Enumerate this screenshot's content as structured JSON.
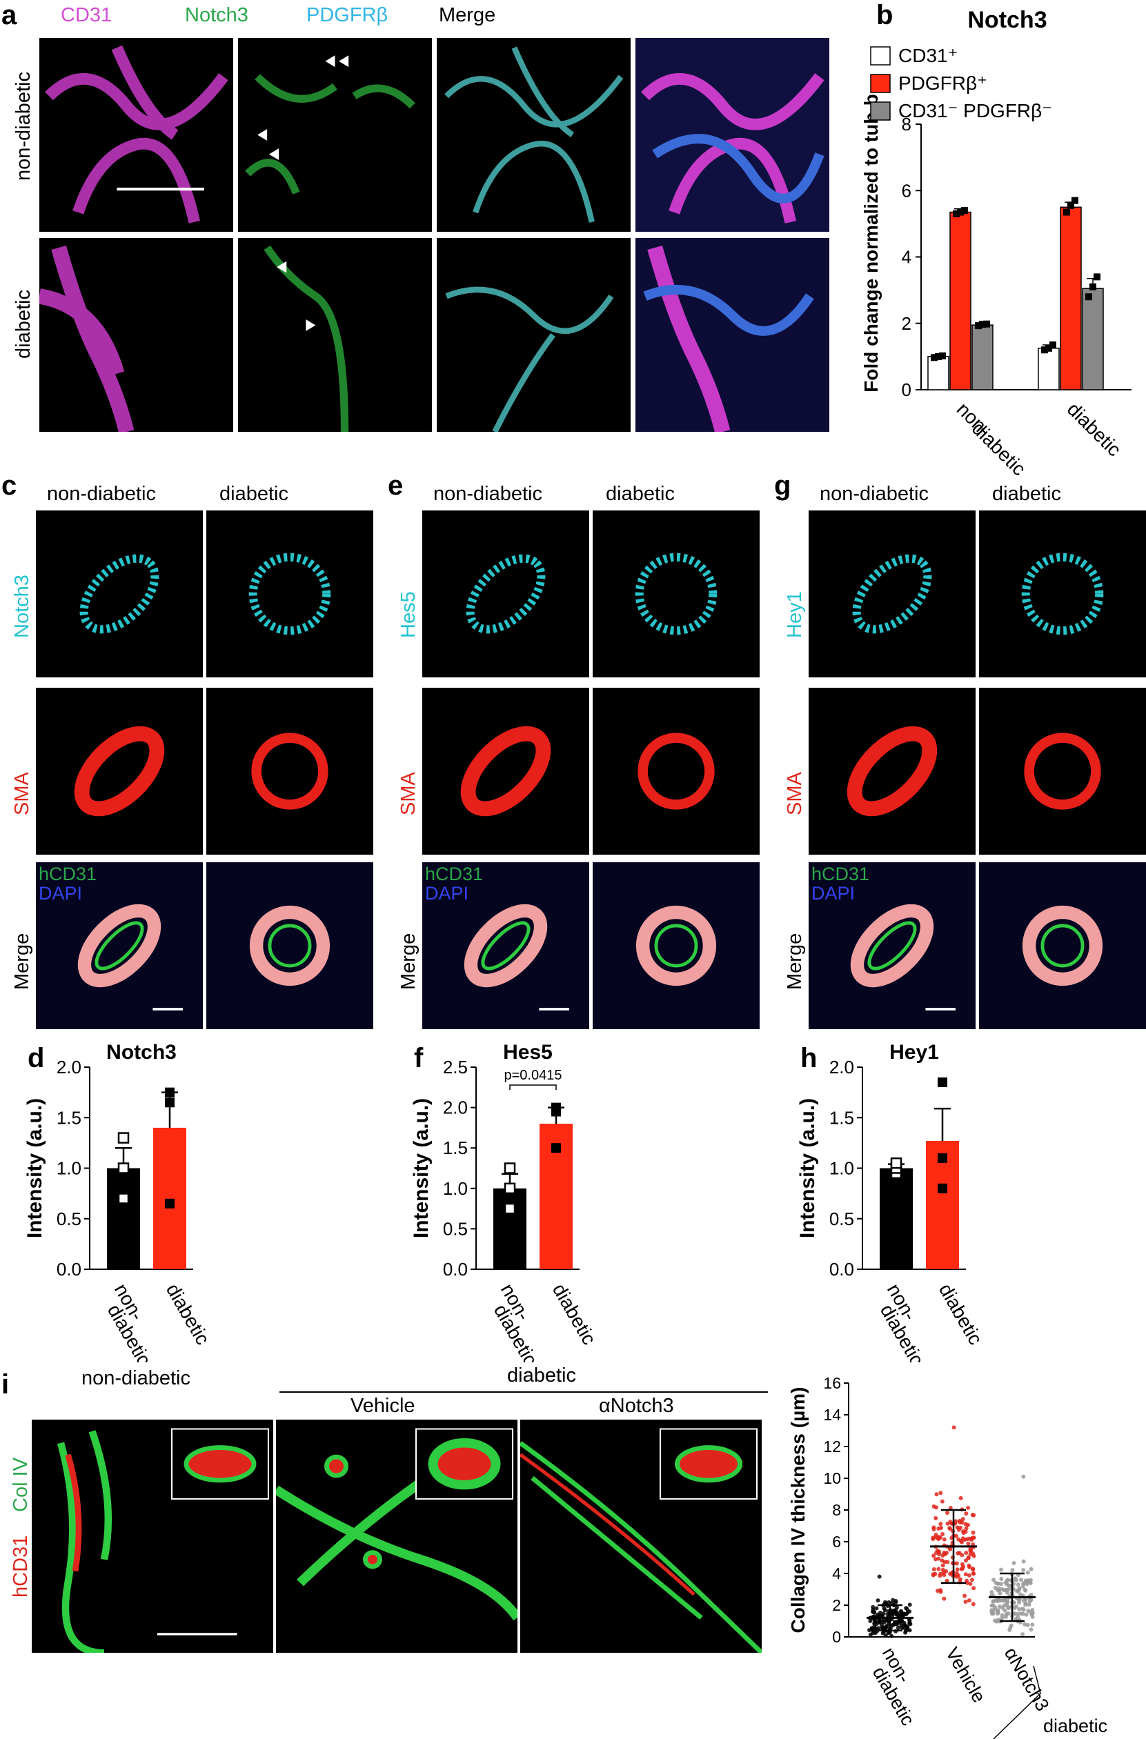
{
  "panels": {
    "a": {
      "letter": "a",
      "channels": [
        {
          "label": "CD31",
          "color": "#d24fd2"
        },
        {
          "label": "Notch3",
          "color": "#2aa84a"
        },
        {
          "label": "PDGFRβ",
          "color": "#2fb5e6"
        },
        {
          "label": "Merge",
          "color": "#000000"
        }
      ],
      "rows": [
        "non-diabetic",
        "diabetic"
      ]
    },
    "c": {
      "letter": "c",
      "cols": [
        "non-diabetic",
        "diabetic"
      ],
      "rows": [
        "Notch3",
        "SMA",
        "Merge"
      ],
      "merge_labels": [
        "hCD31",
        "DAPI"
      ]
    },
    "e": {
      "letter": "e",
      "cols": [
        "non-diabetic",
        "diabetic"
      ],
      "rows": [
        "Hes5",
        "SMA",
        "Merge"
      ],
      "merge_labels": [
        "hCD31",
        "DAPI"
      ]
    },
    "g": {
      "letter": "g",
      "cols": [
        "non-diabetic",
        "diabetic"
      ],
      "rows": [
        "Hey1",
        "SMA",
        "Merge"
      ],
      "merge_labels": [
        "hCD31",
        "DAPI"
      ]
    },
    "i": {
      "letter": "i",
      "cols": [
        "non-diabetic",
        "Vehicle",
        "αNotch3"
      ],
      "group": "diabetic",
      "side_labels": [
        "hCD31",
        "Col IV"
      ]
    }
  },
  "chart_data": [
    {
      "id": "b",
      "letter": "b",
      "type": "bar",
      "title": "Notch3",
      "ylabel": "Fold change normalized to tub-b",
      "ylim": [
        0,
        8
      ],
      "yticks": [
        0,
        2,
        4,
        6,
        8
      ],
      "categories": [
        "non-diabetic",
        "diabetic"
      ],
      "category_labels": [
        [
          "non-",
          "diabetic"
        ],
        [
          "diabetic"
        ]
      ],
      "legend": [
        "CD31⁺",
        "PDGFRβ⁺",
        "CD31⁻ PDGFRβ⁻"
      ],
      "series": [
        {
          "name": "CD31⁺",
          "color": "#ffffff",
          "values": [
            1.0,
            1.25
          ],
          "err": [
            0.05,
            0.1
          ],
          "points": [
            [
              0.97,
              1.0,
              1.02
            ],
            [
              1.2,
              1.25,
              1.35
            ]
          ]
        },
        {
          "name": "PDGFRβ⁺",
          "color": "#ff2a12",
          "values": [
            5.35,
            5.5
          ],
          "err": [
            0.1,
            0.15
          ],
          "points": [
            [
              5.3,
              5.35,
              5.4
            ],
            [
              5.35,
              5.55,
              5.7
            ]
          ]
        },
        {
          "name": "CD31⁻ PDGFRβ⁻",
          "color": "#888888",
          "values": [
            1.95,
            3.05
          ],
          "err": [
            0.05,
            0.3
          ],
          "points": [
            [
              1.93,
              1.97,
              1.98
            ],
            [
              2.8,
              3.1,
              3.4
            ]
          ]
        }
      ]
    },
    {
      "id": "d",
      "letter": "d",
      "type": "bar",
      "title": "Notch3",
      "ylabel": "Intensity (a.u.)",
      "ylim": [
        0,
        2.0
      ],
      "yticks": [
        "0.0",
        "0.5",
        "1.0",
        "1.5",
        "2.0"
      ],
      "categories": [
        "non-diabetic",
        "diabetic"
      ],
      "category_labels": [
        [
          "non-",
          "diabetic"
        ],
        [
          "diabetic"
        ]
      ],
      "values": [
        1.0,
        1.4
      ],
      "err": [
        0.2,
        0.35
      ],
      "colors": [
        "#000000",
        "#ff2a12"
      ],
      "points": [
        [
          0.7,
          1.0,
          1.3
        ],
        [
          0.65,
          1.65,
          1.75
        ]
      ],
      "annotation": ""
    },
    {
      "id": "f",
      "letter": "f",
      "type": "bar",
      "title": "Hes5",
      "ylabel": "Intensity (a.u.)",
      "ylim": [
        0,
        2.5
      ],
      "yticks": [
        "0.0",
        "0.5",
        "1.0",
        "1.5",
        "2.0",
        "2.5"
      ],
      "categories": [
        "non-diabetic",
        "diabetic"
      ],
      "category_labels": [
        [
          "non-",
          "diabetic"
        ],
        [
          "diabetic"
        ]
      ],
      "values": [
        1.0,
        1.8
      ],
      "err": [
        0.18,
        0.2
      ],
      "colors": [
        "#000000",
        "#ff2a12"
      ],
      "points": [
        [
          0.75,
          1.0,
          1.25
        ],
        [
          1.5,
          1.95,
          2.0
        ]
      ],
      "annotation": "p=0.0415"
    },
    {
      "id": "h",
      "letter": "h",
      "type": "bar",
      "title": "Hey1",
      "ylabel": "Intensity (a.u.)",
      "ylim": [
        0,
        2.0
      ],
      "yticks": [
        "0.0",
        "0.5",
        "1.0",
        "1.5",
        "2.0"
      ],
      "categories": [
        "non-diabetic",
        "diabetic"
      ],
      "category_labels": [
        [
          "non-",
          "diabetic"
        ],
        [
          "diabetic"
        ]
      ],
      "values": [
        1.0,
        1.27
      ],
      "err": [
        0.04,
        0.32
      ],
      "colors": [
        "#000000",
        "#ff2a12"
      ],
      "points": [
        [
          0.95,
          1.0,
          1.05
        ],
        [
          0.8,
          1.1,
          1.85
        ]
      ],
      "annotation": ""
    },
    {
      "id": "i-chart",
      "type": "scatter",
      "ylabel": "Collagen IV thickness (µm)",
      "ylim": [
        0,
        16
      ],
      "yticks": [
        0,
        2,
        4,
        6,
        8,
        10,
        12,
        14,
        16
      ],
      "categories": [
        "non-diabetic",
        "Vehicle",
        "αNotch3"
      ],
      "category_labels": [
        [
          "non-",
          "diabetic"
        ],
        [
          "Vehicle"
        ],
        [
          "αNotch3"
        ]
      ],
      "group_label": "diabetic",
      "colors": [
        "#000000",
        "#e0261c",
        "#9a9a9a"
      ],
      "summary": [
        {
          "mean": 1.2,
          "sd_low": 0.4,
          "sd_high": 2.0,
          "max": 3.8
        },
        {
          "mean": 5.7,
          "sd_low": 3.4,
          "sd_high": 8.0,
          "max": 13.2
        },
        {
          "mean": 2.5,
          "sd_low": 1.0,
          "sd_high": 4.0,
          "max": 10.1
        }
      ]
    }
  ]
}
